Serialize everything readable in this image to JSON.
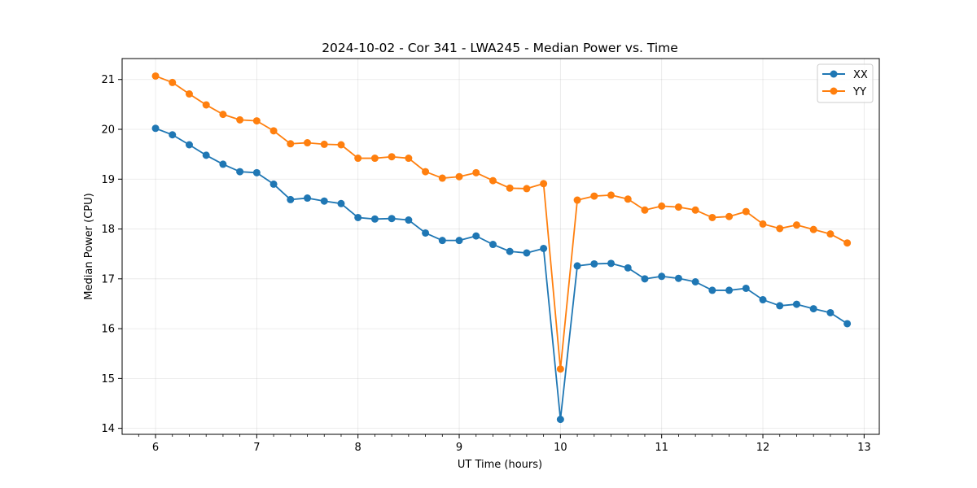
{
  "chart_data": {
    "type": "line",
    "title": "2024-10-02 - Cor 341 - LWA245 - Median Power vs. Time",
    "xlabel": "UT Time (hours)",
    "ylabel": "Median Power (CPU)",
    "xlim": [
      5.67,
      13.15
    ],
    "ylim": [
      13.88,
      21.42
    ],
    "xticks": [
      6,
      7,
      8,
      9,
      10,
      11,
      12,
      13
    ],
    "xtick_labels": [
      "6",
      "7",
      "8",
      "9",
      "10",
      "11",
      "12",
      "13"
    ],
    "yticks": [
      14,
      15,
      16,
      17,
      18,
      19,
      20,
      21
    ],
    "ytick_labels": [
      "14",
      "15",
      "16",
      "17",
      "18",
      "19",
      "20",
      "21"
    ],
    "grid": true,
    "legend_position": "top-right",
    "x": [
      6.0,
      6.1667,
      6.3333,
      6.5,
      6.6667,
      6.8333,
      7.0,
      7.1667,
      7.3333,
      7.5,
      7.6667,
      7.8333,
      8.0,
      8.1667,
      8.3333,
      8.5,
      8.6667,
      8.8333,
      9.0,
      9.1667,
      9.3333,
      9.5,
      9.6667,
      9.8333,
      10.0,
      10.1667,
      10.3333,
      10.5,
      10.6667,
      10.8333,
      11.0,
      11.1667,
      11.3333,
      11.5,
      11.6667,
      11.8333,
      12.0,
      12.1667,
      12.3333,
      12.5,
      12.6667,
      12.8333
    ],
    "series": [
      {
        "name": "XX",
        "color": "#1f77b4",
        "values": [
          20.02,
          19.89,
          19.69,
          19.48,
          19.3,
          19.15,
          19.13,
          18.9,
          18.59,
          18.62,
          18.56,
          18.51,
          18.23,
          18.2,
          18.21,
          18.18,
          17.92,
          17.77,
          17.77,
          17.86,
          17.69,
          17.55,
          17.52,
          17.61,
          14.18,
          17.26,
          17.3,
          17.31,
          17.22,
          17.0,
          17.05,
          17.01,
          16.94,
          16.77,
          16.77,
          16.81,
          16.58,
          16.46,
          16.49,
          16.4,
          16.32,
          16.1
        ]
      },
      {
        "name": "YY",
        "color": "#ff7f0e",
        "values": [
          21.07,
          20.94,
          20.71,
          20.49,
          20.3,
          20.19,
          20.17,
          19.97,
          19.71,
          19.73,
          19.7,
          19.69,
          19.42,
          19.42,
          19.45,
          19.42,
          19.15,
          19.02,
          19.05,
          19.13,
          18.97,
          18.82,
          18.81,
          18.91,
          15.19,
          18.58,
          18.66,
          18.68,
          18.6,
          18.38,
          18.46,
          18.44,
          18.38,
          18.23,
          18.25,
          18.35,
          18.1,
          18.01,
          18.08,
          17.99,
          17.9,
          17.72
        ]
      }
    ]
  }
}
